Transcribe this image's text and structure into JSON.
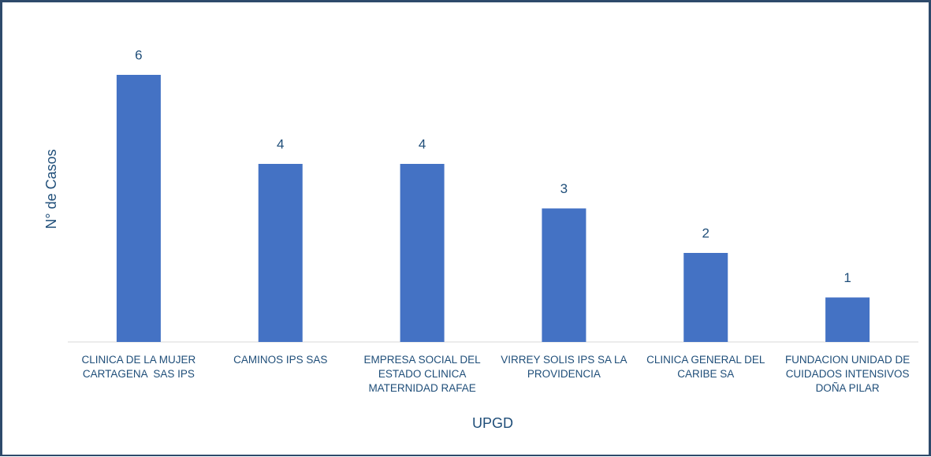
{
  "chart_data": {
    "type": "bar",
    "xlabel": "UPGD",
    "ylabel": "N° de Casos",
    "categories": [
      "CLINICA DE LA MUJER CARTAGENA  SAS IPS",
      "CAMINOS IPS SAS",
      "EMPRESA SOCIAL DEL ESTADO CLINICA MATERNIDAD RAFAE",
      "VIRREY SOLIS IPS SA LA  PROVIDENCIA",
      "CLINICA GENERAL DEL CARIBE SA",
      "FUNDACION UNIDAD DE CUIDADOS INTENSIVOS DOÑA PILAR"
    ],
    "values": [
      6,
      4,
      4,
      3,
      2,
      1
    ],
    "color": "#4472c4",
    "ylim": [
      0,
      6
    ]
  }
}
